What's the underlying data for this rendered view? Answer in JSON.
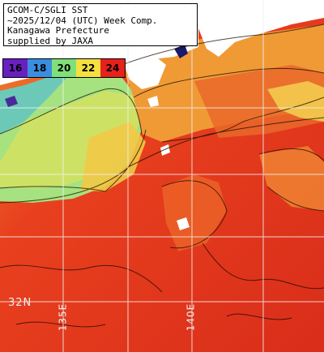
{
  "title": {
    "line1": "GCOM-C/SGLI SST",
    "line2": "~2025/12/04 (UTC) Week Comp.",
    "line3": "Kanagawa Prefecture",
    "line4": "supplied by JAXA"
  },
  "colorbar": {
    "ticks": [
      "16",
      "18",
      "20",
      "22",
      "24"
    ],
    "colors": [
      "#6a1fc0",
      "#3a8ee0",
      "#7fe07a",
      "#f6e040",
      "#e8201c"
    ],
    "text_colors": [
      "#000",
      "#000",
      "#000",
      "#000",
      "#000"
    ]
  },
  "grid": {
    "lat_label": "32N",
    "lon_labels": [
      "135E",
      "140E"
    ]
  },
  "palette": {
    "land": "#ffffff",
    "sea_hot": "#e3301f",
    "sea_warm": "#ee6326",
    "sea_orange": "#f3a23a",
    "sea_yellow": "#efd44c",
    "sea_green": "#9fe080",
    "sea_cyan": "#6fd0c0",
    "contour": "#1a0a00",
    "gridline": "#f0f0f0"
  }
}
